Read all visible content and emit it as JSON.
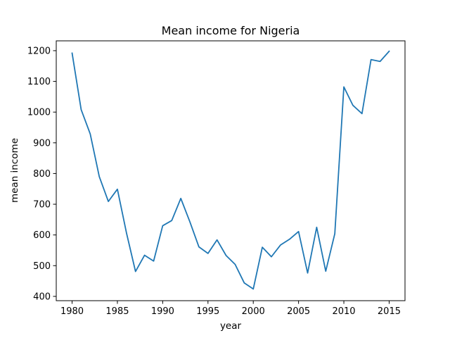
{
  "chart_data": {
    "type": "line",
    "title": "Mean income for Nigeria",
    "xlabel": "year",
    "ylabel": "mean income",
    "xlim": [
      1978.25,
      2016.75
    ],
    "ylim": [
      386,
      1232
    ],
    "xticks": [
      1980,
      1985,
      1990,
      1995,
      2000,
      2005,
      2010,
      2015
    ],
    "yticks": [
      400,
      500,
      600,
      700,
      800,
      900,
      1000,
      1100,
      1200
    ],
    "grid": false,
    "series": [
      {
        "color": "#1f77b4",
        "x": [
          1980,
          1981,
          1982,
          1983,
          1984,
          1985,
          1986,
          1987,
          1988,
          1989,
          1990,
          1991,
          1992,
          1993,
          1994,
          1995,
          1996,
          1997,
          1998,
          1999,
          2000,
          2001,
          2002,
          2003,
          2004,
          2005,
          2006,
          2007,
          2008,
          2009,
          2010,
          2011,
          2012,
          2013,
          2014,
          2015
        ],
        "values": [
          1192,
          1008,
          929,
          790,
          709,
          749,
          607,
          481,
          534,
          515,
          630,
          647,
          719,
          643,
          561,
          540,
          584,
          533,
          504,
          444,
          424,
          560,
          529,
          567,
          586,
          611,
          476,
          625,
          482,
          604,
          1082,
          1022,
          995,
          1171,
          1165,
          1198
        ]
      }
    ]
  }
}
